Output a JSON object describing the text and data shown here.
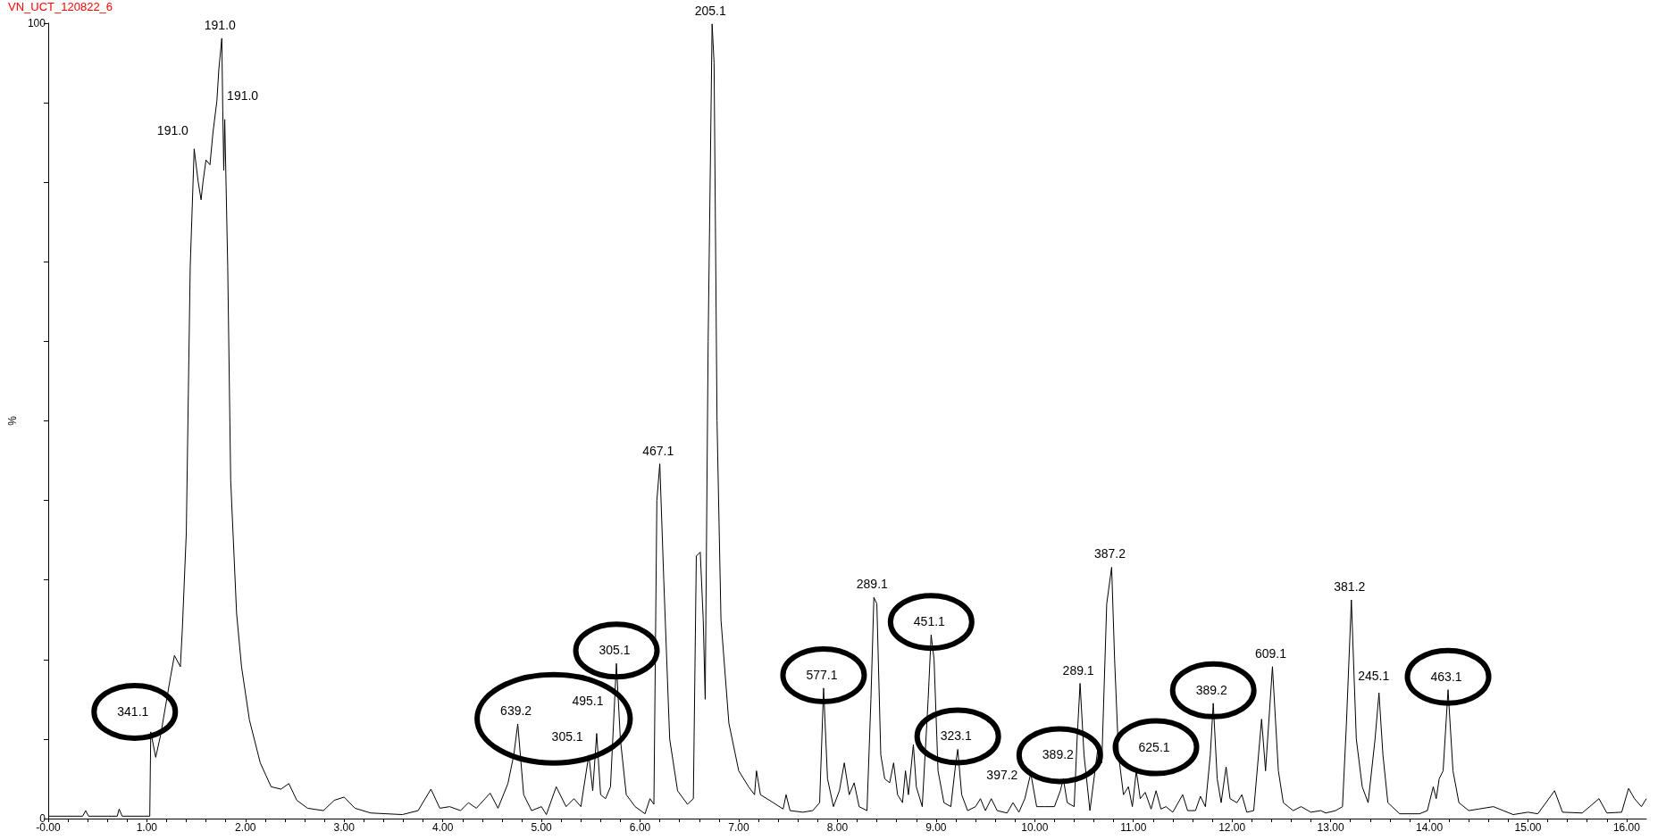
{
  "chart_data": {
    "type": "line",
    "title": "VN_UCT_120822_6",
    "ylabel": "%",
    "marker": "none",
    "line_style": "solid",
    "xlim": [
      0,
      16.2
    ],
    "xticks": [
      {
        "value": 0,
        "label": "-0.00"
      },
      {
        "value": 0.2,
        "label": null
      },
      {
        "value": 0.4,
        "label": null
      },
      {
        "value": 0.6,
        "label": null
      },
      {
        "value": 0.8,
        "label": null
      },
      {
        "value": 1,
        "label": "1.00"
      },
      {
        "value": 1.2,
        "label": null
      },
      {
        "value": 1.4,
        "label": null
      },
      {
        "value": 1.6,
        "label": null
      },
      {
        "value": 1.8,
        "label": null
      },
      {
        "value": 2,
        "label": "2.00"
      },
      {
        "value": 2.2,
        "label": null
      },
      {
        "value": 2.4,
        "label": null
      },
      {
        "value": 2.6,
        "label": null
      },
      {
        "value": 2.8,
        "label": null
      },
      {
        "value": 3,
        "label": "3.00"
      },
      {
        "value": 3.2,
        "label": null
      },
      {
        "value": 3.4,
        "label": null
      },
      {
        "value": 3.6,
        "label": null
      },
      {
        "value": 3.8,
        "label": null
      },
      {
        "value": 4,
        "label": "4.00"
      },
      {
        "value": 4.2,
        "label": null
      },
      {
        "value": 4.4,
        "label": null
      },
      {
        "value": 4.6,
        "label": null
      },
      {
        "value": 4.8,
        "label": null
      },
      {
        "value": 5,
        "label": "5.00"
      },
      {
        "value": 5.2,
        "label": null
      },
      {
        "value": 5.4,
        "label": null
      },
      {
        "value": 5.6,
        "label": null
      },
      {
        "value": 5.8,
        "label": null
      },
      {
        "value": 6,
        "label": "6.00"
      },
      {
        "value": 6.2,
        "label": null
      },
      {
        "value": 6.4,
        "label": null
      },
      {
        "value": 6.6,
        "label": null
      },
      {
        "value": 6.8,
        "label": null
      },
      {
        "value": 7,
        "label": "7.00"
      },
      {
        "value": 7.2,
        "label": null
      },
      {
        "value": 7.4,
        "label": null
      },
      {
        "value": 7.6,
        "label": null
      },
      {
        "value": 7.8,
        "label": null
      },
      {
        "value": 8,
        "label": "8.00"
      },
      {
        "value": 8.2,
        "label": null
      },
      {
        "value": 8.4,
        "label": null
      },
      {
        "value": 8.6,
        "label": null
      },
      {
        "value": 8.8,
        "label": null
      },
      {
        "value": 9,
        "label": "9.00"
      },
      {
        "value": 9.2,
        "label": null
      },
      {
        "value": 9.4,
        "label": null
      },
      {
        "value": 9.6,
        "label": null
      },
      {
        "value": 9.8,
        "label": null
      },
      {
        "value": 10,
        "label": "10.00"
      },
      {
        "value": 10.2,
        "label": null
      },
      {
        "value": 10.4,
        "label": null
      },
      {
        "value": 10.6,
        "label": null
      },
      {
        "value": 10.8,
        "label": null
      },
      {
        "value": 11,
        "label": "11.00"
      },
      {
        "value": 11.2,
        "label": null
      },
      {
        "value": 11.4,
        "label": null
      },
      {
        "value": 11.6,
        "label": null
      },
      {
        "value": 11.8,
        "label": null
      },
      {
        "value": 12,
        "label": "12.00"
      },
      {
        "value": 12.2,
        "label": null
      },
      {
        "value": 12.4,
        "label": null
      },
      {
        "value": 12.6,
        "label": null
      },
      {
        "value": 12.8,
        "label": null
      },
      {
        "value": 13,
        "label": "13.00"
      },
      {
        "value": 13.2,
        "label": null
      },
      {
        "value": 13.4,
        "label": null
      },
      {
        "value": 13.6,
        "label": null
      },
      {
        "value": 13.8,
        "label": null
      },
      {
        "value": 14,
        "label": "14.00"
      },
      {
        "value": 14.2,
        "label": null
      },
      {
        "value": 14.4,
        "label": null
      },
      {
        "value": 14.6,
        "label": null
      },
      {
        "value": 14.8,
        "label": null
      },
      {
        "value": 15,
        "label": "15.00"
      },
      {
        "value": 15.2,
        "label": null
      },
      {
        "value": 15.4,
        "label": null
      },
      {
        "value": 15.6,
        "label": null
      },
      {
        "value": 15.8,
        "label": null
      },
      {
        "value": 16,
        "label": "16.00"
      }
    ],
    "ylim": [
      0,
      100
    ],
    "yticks": [
      0,
      {
        "value": 10,
        "label": null
      },
      {
        "value": 20,
        "label": null
      },
      {
        "value": 30,
        "label": null
      },
      {
        "value": 40,
        "label": null
      },
      {
        "value": 50,
        "label": null
      },
      {
        "value": 60,
        "label": null
      },
      {
        "value": 70,
        "label": null
      },
      {
        "value": 80,
        "label": null
      },
      {
        "value": 90,
        "label": null
      },
      100
    ],
    "series": [
      {
        "color": "#000000",
        "x": [
          0,
          0.35,
          0.38,
          0.41,
          0.7,
          0.72,
          0.75,
          1.03,
          1.04,
          1.09,
          1.14,
          1.24,
          1.28,
          1.34,
          1.36,
          1.4,
          1.44,
          1.48,
          1.52,
          1.55,
          1.57,
          1.6,
          1.64,
          1.67,
          1.71,
          1.73,
          1.76,
          1.77,
          1.78,
          1.79,
          1.82,
          1.85,
          1.91,
          1.96,
          2.04,
          2.15,
          2.26,
          2.36,
          2.44,
          2.52,
          2.63,
          2.79,
          2.9,
          3,
          3.11,
          3.27,
          3.59,
          3.75,
          3.88,
          3.97,
          4.07,
          4.18,
          4.26,
          4.34,
          4.48,
          4.56,
          4.66,
          4.72,
          4.76,
          4.82,
          4.9,
          5,
          5.05,
          5.15,
          5.25,
          5.33,
          5.4,
          5.48,
          5.52,
          5.56,
          5.6,
          5.65,
          5.7,
          5.76,
          5.8,
          5.86,
          5.95,
          6.05,
          6.1,
          6.14,
          6.17,
          6.2,
          6.24,
          6.3,
          6.38,
          6.48,
          6.54,
          6.57,
          6.61,
          6.64,
          6.66,
          6.69,
          6.73,
          6.75,
          6.78,
          6.82,
          6.9,
          7,
          7.1,
          7.16,
          7.18,
          7.22,
          7.35,
          7.45,
          7.48,
          7.52,
          7.65,
          7.75,
          7.82,
          7.86,
          7.9,
          7.96,
          8.02,
          8.07,
          8.12,
          8.17,
          8.22,
          8.3,
          8.34,
          8.37,
          8.4,
          8.44,
          8.48,
          8.53,
          8.57,
          8.61,
          8.66,
          8.69,
          8.72,
          8.77,
          8.8,
          8.86,
          8.92,
          8.95,
          8.98,
          9.02,
          9.08,
          9.15,
          9.2,
          9.22,
          9.26,
          9.32,
          9.4,
          9.45,
          9.5,
          9.56,
          9.62,
          9.72,
          9.78,
          9.84,
          9.9,
          9.96,
          10.02,
          10.1,
          10.2,
          10.26,
          10.29,
          10.33,
          10.4,
          10.43,
          10.46,
          10.5,
          10.56,
          10.64,
          10.68,
          10.73,
          10.78,
          10.81,
          10.85,
          10.9,
          10.95,
          10.99,
          11.03,
          11.07,
          11.12,
          11.18,
          11.23,
          11.28,
          11.33,
          11.4,
          11.5,
          11.55,
          11.63,
          11.68,
          11.73,
          11.78,
          11.81,
          11.85,
          11.89,
          11.94,
          11.98,
          12.05,
          12.1,
          12.15,
          12.22,
          12.3,
          12.34,
          12.41,
          12.47,
          12.52,
          12.62,
          12.7,
          12.8,
          12.9,
          12.95,
          13.05,
          13.12,
          13.16,
          13.21,
          13.26,
          13.32,
          13.38,
          13.45,
          13.49,
          13.53,
          13.58,
          13.7,
          13.9,
          13.98,
          14.04,
          14.07,
          14.1,
          14.14,
          14.19,
          14.24,
          14.3,
          14.4,
          14.5,
          14.65,
          14.75,
          14.85,
          15,
          15.1,
          15.27,
          15.35,
          15.55,
          15.72,
          15.8,
          15.95,
          16.02,
          16.08,
          16.15,
          16.2
        ],
        "values": [
          0.3,
          0.3,
          1,
          0.3,
          0.3,
          1.2,
          0.3,
          0.3,
          10.9,
          7.7,
          10.5,
          17.8,
          20.5,
          19.1,
          23.8,
          35.9,
          69.4,
          84.2,
          80.1,
          77.8,
          80.1,
          82.8,
          82.2,
          86.2,
          90.2,
          94.2,
          98.1,
          88.9,
          81.5,
          87.9,
          69.4,
          42.6,
          25.8,
          19.1,
          12.4,
          7,
          4,
          3.7,
          4.4,
          2.3,
          1.3,
          1,
          2.3,
          2.7,
          1.3,
          0.7,
          0.5,
          1,
          3.7,
          1.3,
          1.5,
          1,
          2,
          1.3,
          3.2,
          1.3,
          4.4,
          8,
          11.9,
          3,
          1,
          1.5,
          0.5,
          4,
          1.5,
          2.5,
          1.5,
          8,
          3.5,
          10.7,
          3,
          2.5,
          4,
          19.5,
          10,
          3,
          1.5,
          0.6,
          2.5,
          1.8,
          40,
          44.6,
          30,
          10,
          3.5,
          1.8,
          2.5,
          33,
          33.5,
          25,
          15,
          60,
          99.9,
          95,
          50,
          25,
          12,
          6,
          4,
          3,
          6,
          3,
          2,
          1.2,
          3,
          1,
          0.8,
          1,
          2,
          16.4,
          5,
          1.5,
          3.5,
          7,
          3,
          4.5,
          1.5,
          1,
          15,
          27.8,
          27,
          8,
          5,
          4.5,
          7,
          3,
          2,
          6,
          3,
          9.3,
          4,
          1.5,
          15,
          23.1,
          20,
          6,
          2,
          1.5,
          7,
          8.7,
          3,
          1,
          1.5,
          2.5,
          1,
          2.5,
          1,
          0.7,
          2,
          0.8,
          2.5,
          5.7,
          1.5,
          1.5,
          1.5,
          3.5,
          5,
          2,
          1.5,
          10,
          17,
          8,
          1,
          8.8,
          7,
          27,
          31.6,
          20,
          8,
          3,
          4,
          1.5,
          6,
          2.5,
          3.3,
          1.2,
          3.5,
          1.2,
          1.5,
          0.8,
          3,
          1,
          1,
          2.8,
          1.5,
          8,
          14.5,
          5,
          2,
          6.5,
          2.5,
          2,
          3,
          0.8,
          1,
          12.5,
          6,
          19.1,
          6,
          2,
          1,
          1.5,
          0.8,
          1,
          0.7,
          1,
          1.5,
          12,
          27.5,
          10,
          4,
          2,
          10,
          15.8,
          8,
          2,
          0.6,
          0.6,
          1,
          4,
          2.5,
          5,
          6,
          16.2,
          6,
          2,
          1,
          1.2,
          1.5,
          1,
          0.5,
          0.8,
          0.6,
          3.5,
          0.8,
          0.7,
          2.5,
          0.7,
          0.8,
          3.8,
          2.5,
          1.5,
          2.5
        ]
      }
    ],
    "annotations": [
      {
        "text": "191.0",
        "x": 1.48,
        "y": 84.2
      },
      {
        "text": "191.0",
        "x": 1.76,
        "y": 98.1
      },
      {
        "text": "191.0",
        "x": 1.79,
        "y": 87.9
      },
      {
        "text": "341.1",
        "x": 1.04,
        "y": 10.9
      },
      {
        "text": "639.2",
        "x": 4.76,
        "y": 11.9
      },
      {
        "text": "305.1",
        "x": 5.48,
        "y": 8
      },
      {
        "text": "495.1",
        "x": 5.56,
        "y": 10.7
      },
      {
        "text": "305.1",
        "x": 5.76,
        "y": 19.5
      },
      {
        "text": "467.1",
        "x": 6.2,
        "y": 44.6
      },
      {
        "text": "205.1",
        "x": 6.73,
        "y": 99.9
      },
      {
        "text": "577.1",
        "x": 7.86,
        "y": 16.4
      },
      {
        "text": "289.1",
        "x": 8.37,
        "y": 27.8
      },
      {
        "text": "451.1",
        "x": 8.95,
        "y": 23.1
      },
      {
        "text": "323.1",
        "x": 9.22,
        "y": 8.7
      },
      {
        "text": "397.2",
        "x": 9.96,
        "y": 5.7
      },
      {
        "text": "389.2",
        "x": 10.29,
        "y": 5
      },
      {
        "text": "289.1",
        "x": 10.46,
        "y": 17
      },
      {
        "text": "387.2",
        "x": 10.78,
        "y": 31.6
      },
      {
        "text": "625.1",
        "x": 11.03,
        "y": 6
      },
      {
        "text": "389.2",
        "x": 11.81,
        "y": 14.5
      },
      {
        "text": "609.1",
        "x": 12.41,
        "y": 19.1
      },
      {
        "text": "381.2",
        "x": 13.21,
        "y": 27.5
      },
      {
        "text": "245.1",
        "x": 13.49,
        "y": 15.8
      },
      {
        "text": "463.1",
        "x": 14.19,
        "y": 16.2
      }
    ]
  }
}
